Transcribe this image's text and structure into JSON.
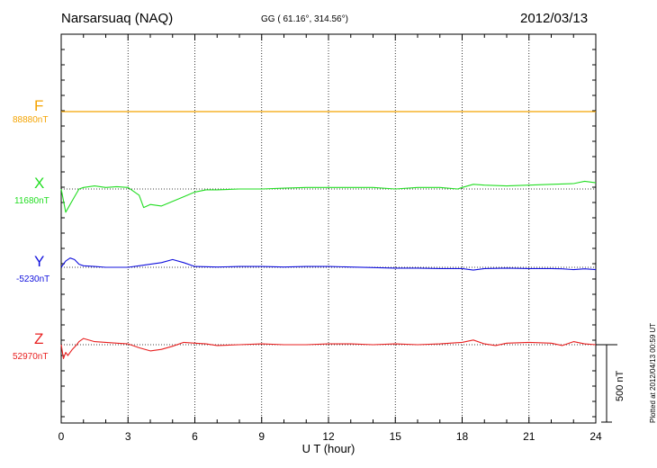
{
  "header": {
    "station": "Narsarsuaq (NAQ)",
    "coords": "GG ( 61.16°, 314.56°)",
    "date": "2012/03/13"
  },
  "footer": {
    "plotted": "Plotted at 2012/04/13 00:59 UT",
    "scale_label": "500 nT"
  },
  "chart_data": {
    "type": "line",
    "xlabel": "U T (hour)",
    "xlim": [
      0,
      24
    ],
    "xticks": [
      "0",
      "3",
      "6",
      "9",
      "12",
      "15",
      "18",
      "21",
      "24"
    ],
    "scale_bar_nT": 500,
    "series": [
      {
        "name": "F",
        "baseline_label": "88880nT",
        "baseline": 88880,
        "color": "#f4a300",
        "x": [
          0,
          24
        ],
        "y": [
          88880,
          88880
        ]
      },
      {
        "name": "X",
        "baseline_label": "11680nT",
        "baseline": 11680,
        "color": "#22dd22",
        "x": [
          0,
          0.2,
          0.4,
          0.6,
          0.8,
          1.0,
          1.5,
          2.0,
          2.5,
          3.0,
          3.5,
          3.7,
          4.0,
          4.5,
          5.0,
          5.5,
          6.0,
          6.5,
          7.0,
          8.0,
          9.0,
          10.0,
          11.0,
          12.0,
          13.0,
          14.0,
          15.0,
          16.0,
          17.0,
          17.8,
          18.0,
          18.5,
          19.0,
          20.0,
          21.0,
          22.0,
          23.0,
          23.5,
          24.0
        ],
        "y": [
          11680,
          11530,
          11580,
          11630,
          11680,
          11690,
          11700,
          11690,
          11695,
          11690,
          11640,
          11560,
          11580,
          11570,
          11600,
          11630,
          11660,
          11675,
          11675,
          11680,
          11680,
          11685,
          11690,
          11690,
          11690,
          11690,
          11680,
          11690,
          11690,
          11680,
          11690,
          11710,
          11705,
          11700,
          11705,
          11710,
          11715,
          11730,
          11720
        ]
      },
      {
        "name": "Y",
        "baseline_label": "-5230nT",
        "baseline": -5230,
        "color": "#1010dd",
        "x": [
          0,
          0.2,
          0.4,
          0.6,
          0.8,
          1.0,
          1.5,
          2.0,
          3.0,
          3.5,
          4.0,
          4.5,
          5.0,
          5.5,
          6.0,
          7.0,
          8.0,
          9.0,
          10.0,
          11.0,
          12.0,
          13.0,
          14.0,
          15.0,
          16.0,
          17.0,
          18.0,
          18.5,
          19.0,
          20.0,
          21.0,
          22.0,
          22.5,
          23.0,
          23.5,
          24.0
        ],
        "y": [
          -5230,
          -5190,
          -5170,
          -5180,
          -5210,
          -5220,
          -5225,
          -5230,
          -5230,
          -5220,
          -5210,
          -5200,
          -5180,
          -5200,
          -5225,
          -5228,
          -5225,
          -5225,
          -5228,
          -5225,
          -5225,
          -5228,
          -5232,
          -5235,
          -5235,
          -5238,
          -5238,
          -5248,
          -5238,
          -5235,
          -5238,
          -5238,
          -5240,
          -5245,
          -5240,
          -5245
        ]
      },
      {
        "name": "Z",
        "baseline_label": "52970nT",
        "baseline": 52970,
        "color": "#e82020",
        "x": [
          0,
          0.1,
          0.2,
          0.3,
          0.5,
          0.7,
          0.8,
          1.0,
          1.5,
          2.0,
          2.5,
          3.0,
          3.5,
          4.0,
          4.5,
          5.0,
          5.5,
          6.0,
          6.5,
          7.0,
          8.0,
          9.0,
          10.0,
          11.0,
          12.0,
          13.0,
          14.0,
          15.0,
          16.0,
          17.0,
          18.0,
          18.5,
          19.0,
          19.5,
          20.0,
          21.0,
          22.0,
          22.5,
          23.0,
          23.5,
          24.0
        ],
        "y": [
          52970,
          52880,
          52920,
          52900,
          52940,
          52970,
          52990,
          53010,
          52990,
          52985,
          52980,
          52975,
          52950,
          52930,
          52940,
          52960,
          52985,
          52980,
          52975,
          52965,
          52970,
          52975,
          52970,
          52970,
          52975,
          52975,
          52970,
          52975,
          52970,
          52975,
          52985,
          53000,
          52975,
          52965,
          52980,
          52985,
          52980,
          52965,
          52990,
          52975,
          52970
        ]
      }
    ]
  }
}
